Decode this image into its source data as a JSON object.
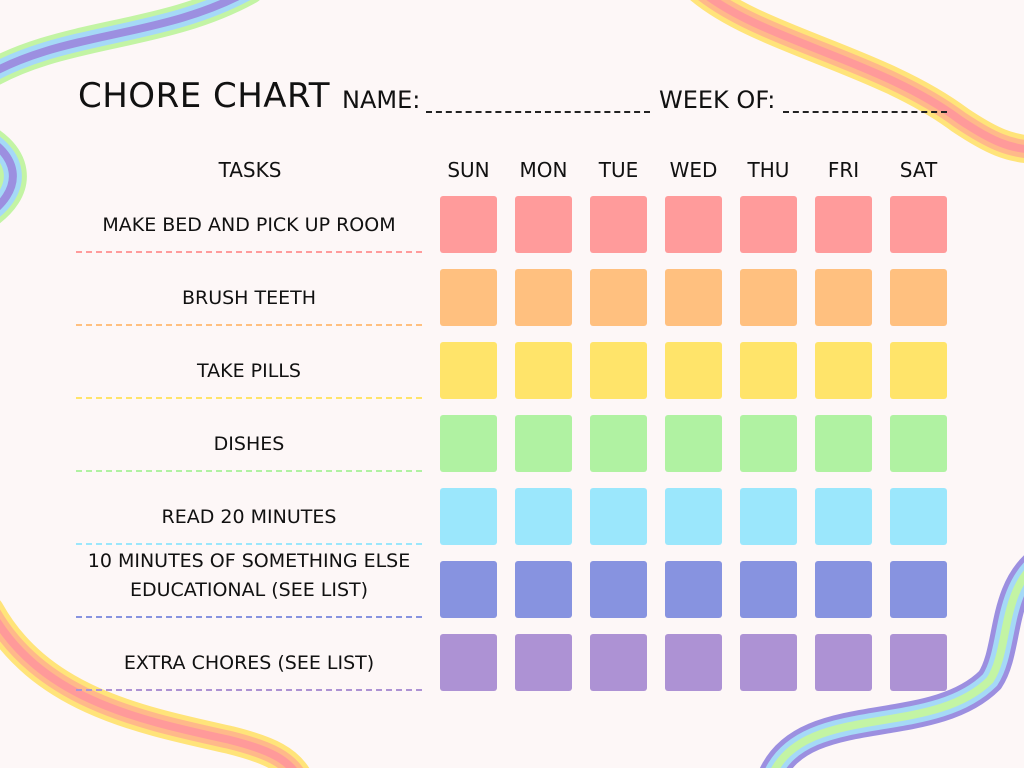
{
  "header": {
    "title": "CHORE CHART",
    "name_label": "NAME:",
    "name_value": "",
    "week_label": "WEEK OF:",
    "week_value": ""
  },
  "table": {
    "tasks_header": "TASKS",
    "days": [
      "SUN",
      "MON",
      "TUE",
      "WED",
      "THU",
      "FRI",
      "SAT"
    ],
    "rows": [
      {
        "lines": [
          "MAKE BED AND PICK UP ROOM"
        ],
        "color": "#ff9b9b"
      },
      {
        "lines": [
          "BRUSH TEETH"
        ],
        "color": "#ffc07f"
      },
      {
        "lines": [
          "TAKE PILLS"
        ],
        "color": "#ffe46a"
      },
      {
        "lines": [
          "DISHES"
        ],
        "color": "#b0f2a2"
      },
      {
        "lines": [
          "READ 20 MINUTES"
        ],
        "color": "#9be7fc"
      },
      {
        "lines": [
          "10 MINUTES OF SOMETHING ELSE",
          "EDUCATIONAL (SEE LIST)"
        ],
        "color": "#8793e0"
      },
      {
        "lines": [
          "EXTRA CHORES (SEE LIST)"
        ],
        "color": "#ad92d4"
      }
    ]
  },
  "rainbow_colors": [
    "#c3f4a4",
    "#a5d9f7",
    "#9c8fe0",
    "#ffe47a",
    "#ffb98a",
    "#ff9a9a"
  ]
}
